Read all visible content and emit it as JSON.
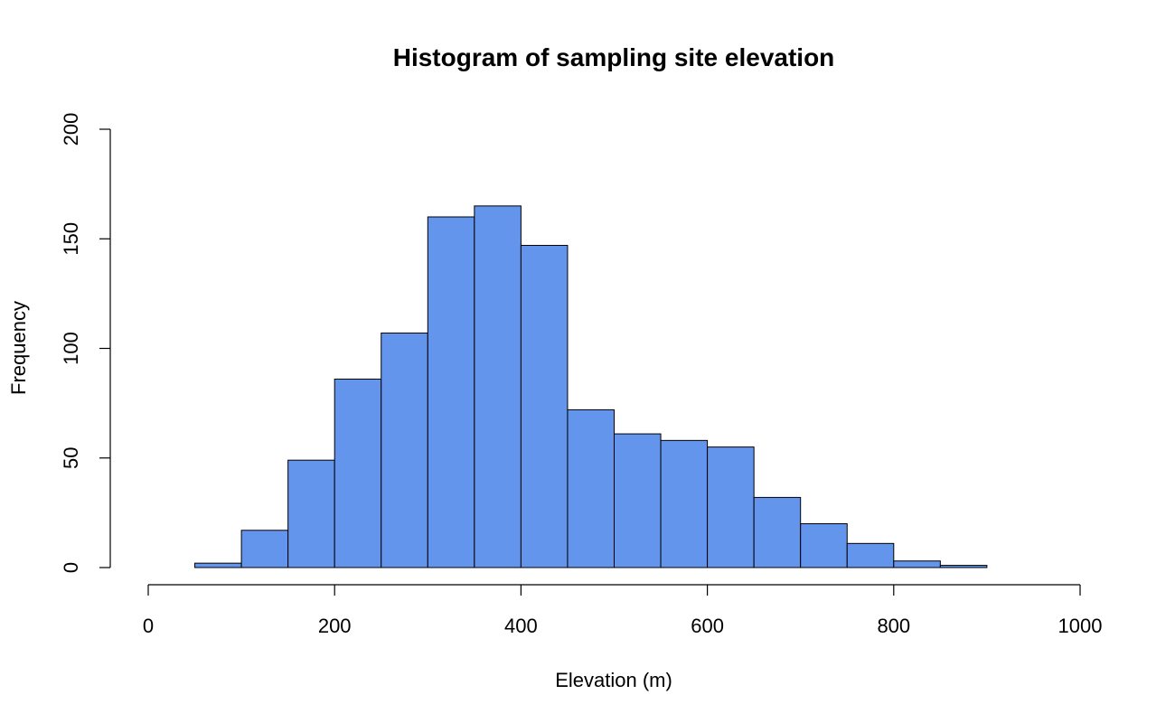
{
  "chart_data": {
    "type": "bar",
    "subtype": "histogram",
    "title": "Histogram of sampling site elevation",
    "xlabel": "Elevation (m)",
    "ylabel": "Frequency",
    "xlim": [
      0,
      1000
    ],
    "ylim": [
      0,
      200
    ],
    "x_ticks": [
      0,
      200,
      400,
      600,
      800,
      1000
    ],
    "y_ticks": [
      0,
      50,
      100,
      150,
      200
    ],
    "bin_width": 50,
    "bins": [
      {
        "start": 50,
        "end": 100,
        "value": 2
      },
      {
        "start": 100,
        "end": 150,
        "value": 17
      },
      {
        "start": 150,
        "end": 200,
        "value": 49
      },
      {
        "start": 200,
        "end": 250,
        "value": 86
      },
      {
        "start": 250,
        "end": 300,
        "value": 107
      },
      {
        "start": 300,
        "end": 350,
        "value": 160
      },
      {
        "start": 350,
        "end": 400,
        "value": 165
      },
      {
        "start": 400,
        "end": 450,
        "value": 147
      },
      {
        "start": 450,
        "end": 500,
        "value": 72
      },
      {
        "start": 500,
        "end": 550,
        "value": 61
      },
      {
        "start": 550,
        "end": 600,
        "value": 58
      },
      {
        "start": 600,
        "end": 650,
        "value": 55
      },
      {
        "start": 650,
        "end": 700,
        "value": 32
      },
      {
        "start": 700,
        "end": 750,
        "value": 20
      },
      {
        "start": 750,
        "end": 800,
        "value": 11
      },
      {
        "start": 800,
        "end": 850,
        "value": 3
      },
      {
        "start": 850,
        "end": 900,
        "value": 1
      }
    ],
    "bar_color": "#6495ED",
    "grid": false,
    "legend": "none"
  }
}
